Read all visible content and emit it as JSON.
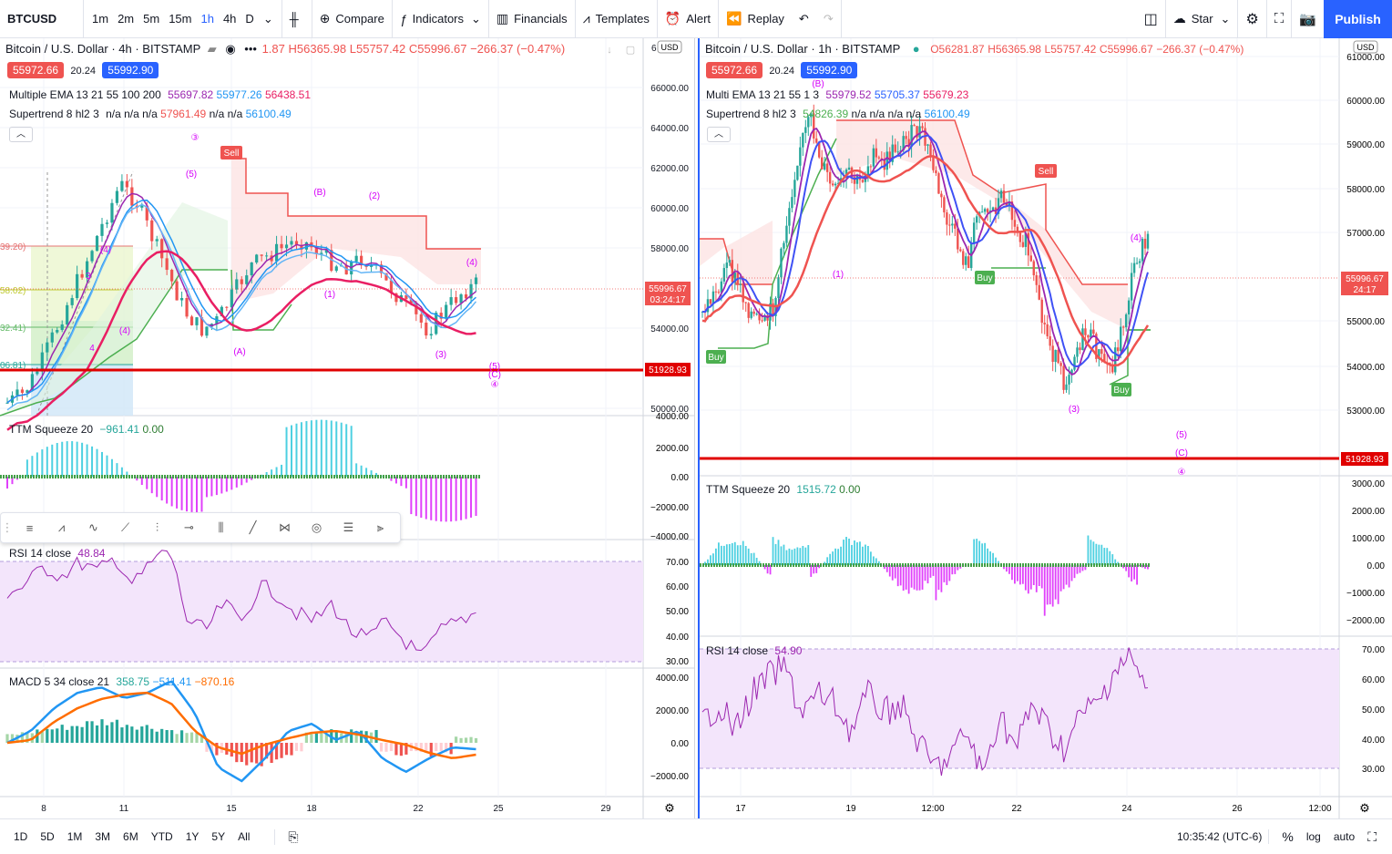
{
  "topbar": {
    "symbol": "BTCUSD",
    "timeframes": [
      "1m",
      "2m",
      "5m",
      "15m",
      "1h",
      "4h",
      "D"
    ],
    "active_timeframe": "1h",
    "compare": "Compare",
    "indicators": "Indicators",
    "financials": "Financials",
    "templates": "Templates",
    "alert": "Alert",
    "replay": "Replay",
    "star": "Star",
    "publish": "Publish"
  },
  "left": {
    "title": "Bitcoin / U.S. Dollar · 4h · BITSTAMP",
    "ohlc_trunc": "1.87",
    "ohlc_h": "H56365.98",
    "ohlc_l": "L55757.42",
    "ohlc_c": "C55996.67",
    "ohlc_chg": "−266.37 (−0.47%)",
    "bid": "55972.66",
    "spread": "20.24",
    "ask": "55992.90",
    "ema_label": "Multiple EMA 13 21 55 100 200",
    "ema_v1": "55697.82",
    "ema_v2": "55977.26",
    "ema_v3": "56438.51",
    "st_label": "Supertrend 8 hl2 3",
    "st_na": "n/a n/a n/a",
    "st_v1": "57961.49",
    "st_na2": "n/a n/a",
    "st_v2": "56100.49",
    "price_axis": [
      "66000.00",
      "64000.00",
      "62000.00",
      "60000.00",
      "58000.00",
      "54000.00",
      "50000.00"
    ],
    "price_axis_top": "6",
    "currency": "USD",
    "last_price": "55996.67",
    "countdown": "03:24:17",
    "line_price": "51928.93",
    "fib_labels": [
      "39.20)",
      "58.02)",
      "32.41)",
      "06.81)",
      "33.00)"
    ],
    "wave": [
      "③",
      "(5)",
      "(4)",
      "3",
      "(4)",
      "4",
      "(A)",
      "(B)",
      "(2)",
      "(1)",
      "(4)",
      "(3)",
      "(5)",
      "(C)",
      "④"
    ],
    "sell": "Sell",
    "ttm_label": "TTM Squeeze 20",
    "ttm_v1": "−961.41",
    "ttm_v2": "0.00",
    "ttm_axis": [
      "4000.00",
      "2000.00",
      "0.00",
      "−2000.00",
      "−4000.00"
    ],
    "rsi_label": "RSI 14 close",
    "rsi_v": "48.84",
    "rsi_axis": [
      "70.00",
      "60.00",
      "50.00",
      "40.00",
      "30.00"
    ],
    "macd_label": "MACD 5 34 close 21",
    "macd_v1": "358.75",
    "macd_v2": "−511.41",
    "macd_v3": "−870.16",
    "macd_axis": [
      "4000.00",
      "2000.00",
      "0.00",
      "−2000.00"
    ],
    "time_axis": [
      "8",
      "11",
      "15",
      "18",
      "22",
      "25",
      "29"
    ]
  },
  "right": {
    "title": "Bitcoin / U.S. Dollar · 1h · BITSTAMP",
    "ohlc": "O56281.87",
    "ohlc_h": "H56365.98",
    "ohlc_l": "L55757.42",
    "ohlc_c": "C55996.67",
    "ohlc_chg": "−266.37 (−0.47%)",
    "bid": "55972.66",
    "spread": "20.24",
    "ask": "55992.90",
    "ema_label": "Multi EMA 13 21 55 1 3",
    "ema_v1": "55979.52",
    "ema_v2": "55705.37",
    "ema_v3": "55679.23",
    "st_label": "Supertrend 8 hl2 3",
    "st_v1": "54826.39",
    "st_na": "n/a n/a n/a n/a",
    "st_v2": "56100.49",
    "price_axis": [
      "61000.00",
      "60000.00",
      "59000.00",
      "58000.00",
      "57000.00",
      "55000.00",
      "54000.00",
      "53000.00"
    ],
    "currency": "USD",
    "last_price": "55996.67",
    "countdown": "24:17",
    "line_price": "51928.93",
    "wave": [
      "(B)",
      "(1)",
      "(3)",
      "(4)",
      "(5)",
      "(C)",
      "④"
    ],
    "buy": "Buy",
    "sell": "Sell",
    "ttm_label": "TTM Squeeze 20",
    "ttm_v1": "1515.72",
    "ttm_v2": "0.00",
    "ttm_axis": [
      "3000.00",
      "2000.00",
      "1000.00",
      "0.00",
      "−1000.00",
      "−2000.00"
    ],
    "rsi_label": "RSI 14 close",
    "rsi_v": "54.90",
    "rsi_axis": [
      "70.00",
      "60.00",
      "50.00",
      "40.00",
      "30.00"
    ],
    "time_axis": [
      "17",
      "19",
      "12:00",
      "22",
      "24",
      "26",
      "12:00"
    ]
  },
  "bottombar": {
    "ranges": [
      "1D",
      "5D",
      "1M",
      "3M",
      "6M",
      "YTD",
      "1Y",
      "5Y",
      "All"
    ],
    "clock": "10:35:42 (UTC-6)",
    "pct": "%",
    "log": "log",
    "auto": "auto"
  },
  "colors": {
    "accent": "#2962ff",
    "up": "#26a69a",
    "down": "#ef5350",
    "red_line": "#e00000",
    "purple": "#9c27b0"
  }
}
